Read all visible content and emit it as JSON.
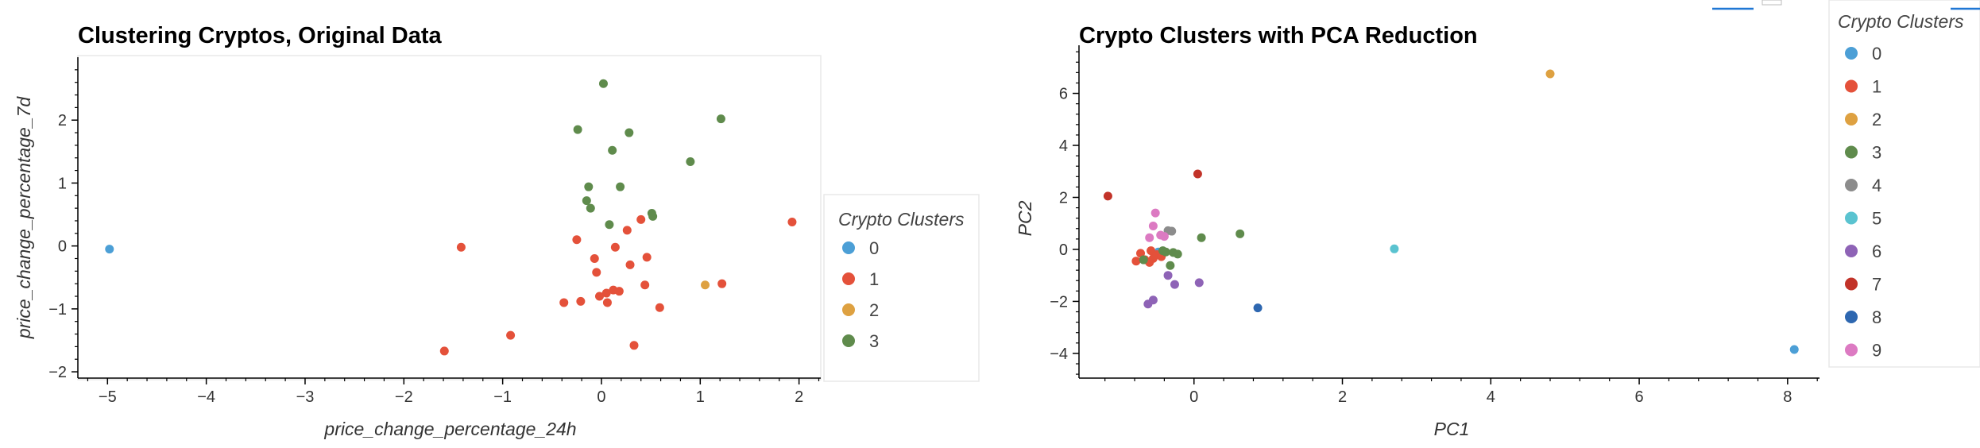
{
  "colors": {
    "palette": [
      "#4c9fd6",
      "#e4513a",
      "#dea141",
      "#5f8b4c",
      "#8c8c8c",
      "#5ac3d0",
      "#8e63b6",
      "#c23329",
      "#2e67b0",
      "#dc7ac2"
    ],
    "frame": "#e8e8e8",
    "axis": "#000000"
  },
  "chart_data": [
    {
      "type": "scatter",
      "title": "Clustering Cryptos, Original Data",
      "xlabel": "price_change_percentage_24h",
      "ylabel": "price_change_percentage_7d",
      "xlim": [
        -5.3,
        2.22
      ],
      "ylim": [
        -2.1,
        3.0
      ],
      "xticks": [
        -5,
        -4,
        -3,
        -2,
        -1,
        0,
        1,
        2
      ],
      "yticks": [
        -2,
        -1,
        0,
        1,
        2
      ],
      "legend": {
        "title": "Crypto Clusters",
        "labels": [
          "0",
          "1",
          "2",
          "3"
        ],
        "position": "right"
      },
      "series": [
        {
          "name": "0",
          "x": [
            -4.98
          ],
          "y": [
            -0.05
          ]
        },
        {
          "name": "1",
          "x": [
            -1.42,
            -1.59,
            -0.92,
            -0.25,
            -0.21,
            -0.38,
            -0.05,
            0.05,
            -0.02,
            0.12,
            0.06,
            0.18,
            0.14,
            0.26,
            0.29,
            0.33,
            0.4,
            0.46,
            0.59,
            0.44,
            1.22,
            1.93,
            -0.07
          ],
          "y": [
            -0.02,
            -1.67,
            -1.42,
            0.1,
            -0.88,
            -0.9,
            -0.42,
            -0.75,
            -0.8,
            -0.7,
            -0.9,
            -0.72,
            -0.02,
            0.25,
            -0.3,
            -1.58,
            0.42,
            -0.18,
            -0.98,
            -0.62,
            -0.6,
            0.38,
            -0.2
          ]
        },
        {
          "name": "2",
          "x": [
            1.05
          ],
          "y": [
            -0.62
          ]
        },
        {
          "name": "3",
          "x": [
            0.02,
            -0.24,
            0.28,
            1.21,
            0.11,
            0.9,
            -0.13,
            0.19,
            -0.15,
            -0.11,
            0.08,
            0.51,
            0.52
          ],
          "y": [
            2.58,
            1.85,
            1.8,
            2.02,
            1.52,
            1.34,
            0.94,
            0.94,
            0.72,
            0.6,
            0.34,
            0.52,
            0.47
          ]
        }
      ]
    },
    {
      "type": "scatter",
      "title": "Crypto Clusters with PCA Reduction",
      "xlabel": "PC1",
      "ylabel": "PC2",
      "xlim": [
        -1.55,
        8.43
      ],
      "ylim": [
        -4.95,
        7.85
      ],
      "xticks": [
        0,
        2,
        4,
        6,
        8
      ],
      "yticks": [
        -4,
        -2,
        0,
        2,
        4,
        6
      ],
      "legend": {
        "title": "Crypto Clusters",
        "labels": [
          "0",
          "1",
          "2",
          "3",
          "4",
          "5",
          "6",
          "7",
          "8",
          "9"
        ],
        "position": "right"
      },
      "series": [
        {
          "name": "0",
          "x": [
            -0.48,
            8.09
          ],
          "y": [
            -0.1,
            -3.85
          ]
        },
        {
          "name": "1",
          "x": [
            -0.78,
            -0.72,
            -0.66,
            -0.58,
            -0.55,
            -0.5,
            -0.44,
            -0.6
          ],
          "y": [
            -0.45,
            -0.15,
            -0.4,
            -0.05,
            -0.35,
            -0.2,
            -0.28,
            -0.5
          ]
        },
        {
          "name": "2",
          "x": [
            4.8
          ],
          "y": [
            6.75
          ]
        },
        {
          "name": "3",
          "x": [
            -0.68,
            -0.42,
            -0.38,
            -0.32,
            -0.28,
            -0.22,
            0.1,
            0.62
          ],
          "y": [
            -0.4,
            -0.05,
            -0.1,
            -0.62,
            -0.12,
            -0.18,
            0.45,
            0.6
          ]
        },
        {
          "name": "4",
          "x": [
            -0.35,
            -0.3
          ],
          "y": [
            0.72,
            0.7
          ]
        },
        {
          "name": "5",
          "x": [
            2.7
          ],
          "y": [
            0.02
          ]
        },
        {
          "name": "6",
          "x": [
            -0.62,
            -0.55,
            -0.35,
            -0.26,
            0.07
          ],
          "y": [
            -2.1,
            -1.95,
            -1.0,
            -1.35,
            -1.28
          ]
        },
        {
          "name": "7",
          "x": [
            -1.16,
            0.05
          ],
          "y": [
            2.05,
            2.9
          ]
        },
        {
          "name": "8",
          "x": [
            0.86
          ],
          "y": [
            -2.25
          ]
        },
        {
          "name": "9",
          "x": [
            -0.52,
            -0.55,
            -0.45,
            -0.4,
            -0.6
          ],
          "y": [
            1.4,
            0.9,
            0.55,
            0.5,
            0.45
          ]
        }
      ]
    }
  ]
}
